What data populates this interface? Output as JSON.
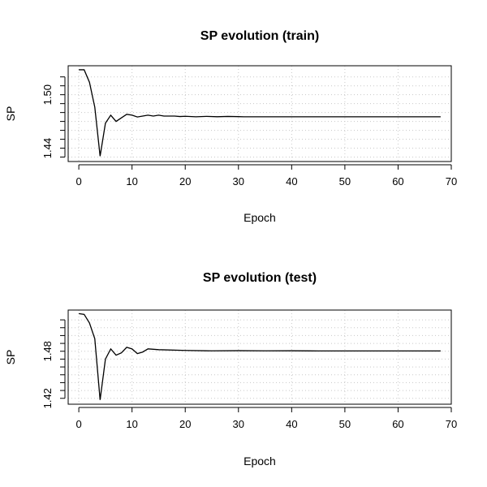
{
  "chart_data": [
    {
      "type": "line",
      "title": "SP evolution (train)",
      "xlabel": "Epoch",
      "ylabel": "SP",
      "xlim": [
        -2,
        70
      ],
      "ylim": [
        1.425,
        1.5325
      ],
      "xticks": [
        0,
        10,
        20,
        30,
        40,
        50,
        60,
        70
      ],
      "xtick_labels": [
        "0",
        "10",
        "20",
        "30",
        "40",
        "50",
        "60",
        "70"
      ],
      "yticks": [
        1.43,
        1.44,
        1.45,
        1.46,
        1.47,
        1.48,
        1.49,
        1.5,
        1.51,
        1.52
      ],
      "ytick_labels": [
        "",
        "1.44",
        "",
        "",
        "",
        "",
        "",
        "1.50",
        "",
        ""
      ],
      "grid": true,
      "color": "#000000",
      "series": [
        {
          "x": [
            0,
            1,
            2,
            3,
            4,
            5,
            6,
            7,
            8,
            9,
            10,
            11,
            12,
            13,
            14,
            15,
            16,
            17,
            18,
            19,
            20,
            22,
            24,
            26,
            28,
            30,
            31,
            35,
            40,
            45,
            50,
            55,
            60,
            65,
            68
          ],
          "y": [
            1.528,
            1.528,
            1.514,
            1.486,
            1.431,
            1.468,
            1.477,
            1.47,
            1.474,
            1.478,
            1.477,
            1.475,
            1.476,
            1.477,
            1.476,
            1.477,
            1.476,
            1.476,
            1.476,
            1.4755,
            1.4758,
            1.4752,
            1.4757,
            1.4753,
            1.4756,
            1.4754,
            1.4752,
            1.4752,
            1.4752,
            1.4752,
            1.4752,
            1.4752,
            1.4752,
            1.4752,
            1.4752
          ]
        }
      ]
    },
    {
      "type": "line",
      "title": "SP evolution (test)",
      "xlabel": "Epoch",
      "ylabel": "SP",
      "xlim": [
        -2,
        70
      ],
      "ylim": [
        1.4125,
        1.5325
      ],
      "xticks": [
        0,
        10,
        20,
        30,
        40,
        50,
        60,
        70
      ],
      "xtick_labels": [
        "0",
        "10",
        "20",
        "30",
        "40",
        "50",
        "60",
        "70"
      ],
      "yticks": [
        1.42,
        1.43,
        1.44,
        1.45,
        1.46,
        1.47,
        1.48,
        1.49,
        1.5,
        1.51,
        1.52
      ],
      "ytick_labels": [
        "1.42",
        "",
        "",
        "",
        "",
        "",
        "1.48",
        "",
        "",
        "",
        ""
      ],
      "grid": true,
      "color": "#000000",
      "series": [
        {
          "x": [
            0,
            1,
            2,
            3,
            4,
            5,
            6,
            7,
            8,
            9,
            10,
            11,
            12,
            13,
            15,
            20,
            25,
            30,
            35,
            40,
            45,
            50,
            55,
            60,
            65,
            68
          ],
          "y": [
            1.528,
            1.527,
            1.516,
            1.496,
            1.418,
            1.47,
            1.483,
            1.475,
            1.478,
            1.485,
            1.483,
            1.477,
            1.479,
            1.483,
            1.482,
            1.481,
            1.4805,
            1.4807,
            1.4805,
            1.4806,
            1.4804,
            1.4804,
            1.4804,
            1.4804,
            1.4804,
            1.4804
          ]
        }
      ]
    }
  ]
}
